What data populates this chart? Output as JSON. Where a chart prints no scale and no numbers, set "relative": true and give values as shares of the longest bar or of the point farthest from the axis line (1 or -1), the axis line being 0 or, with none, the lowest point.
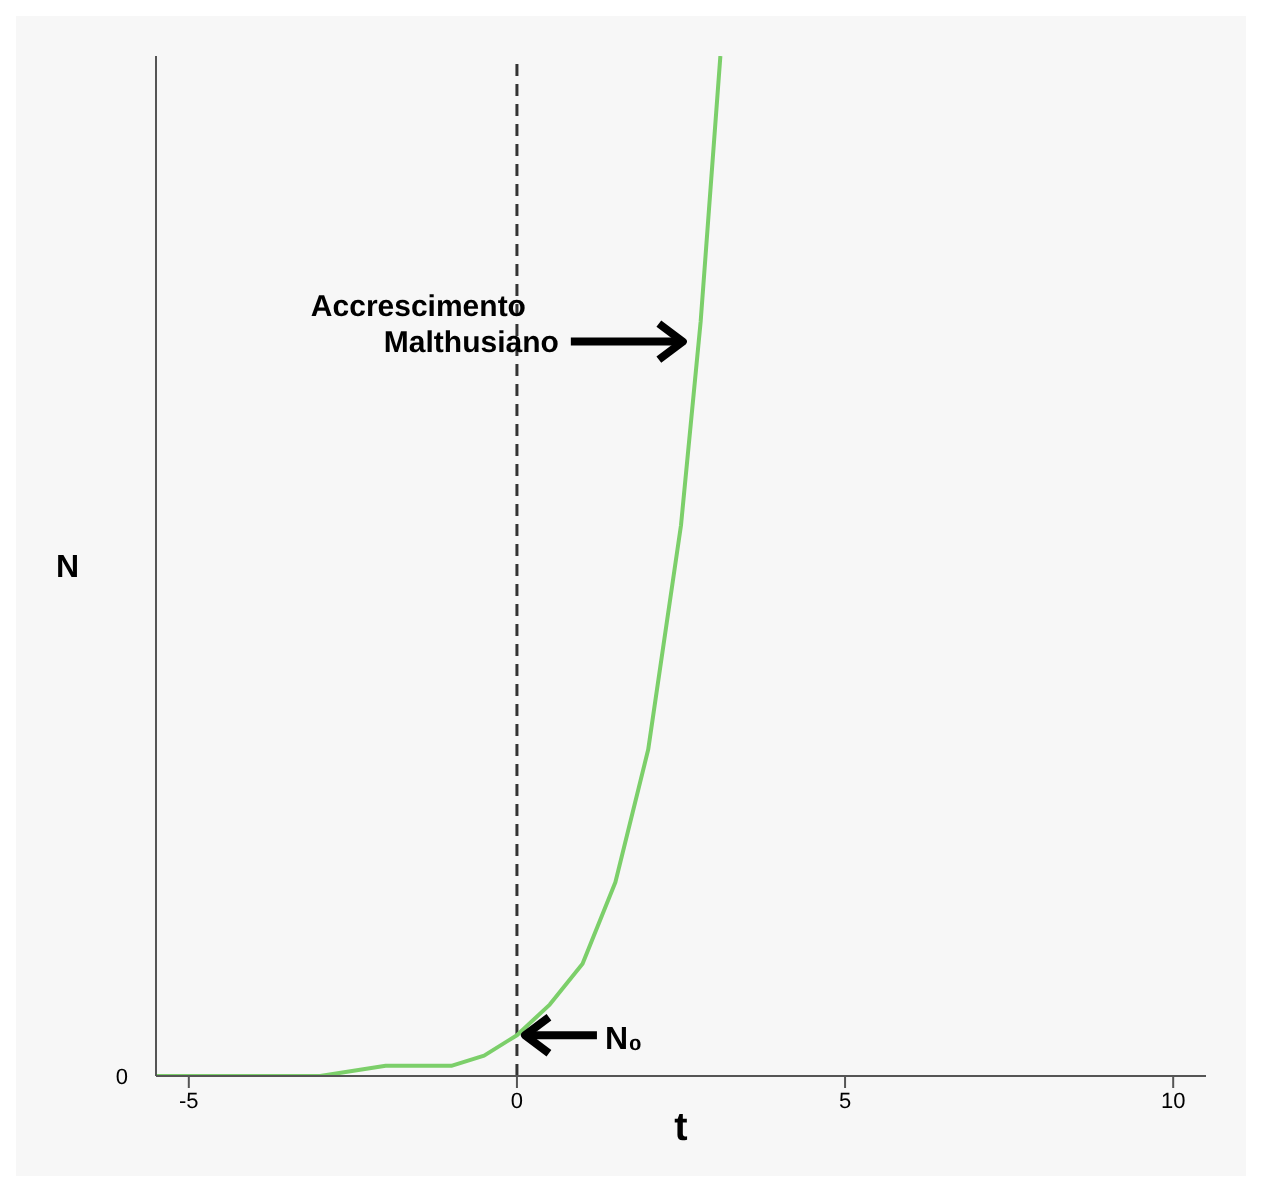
{
  "chart_data": {
    "type": "line",
    "relative": true,
    "xlabel": "t",
    "ylabel": "N",
    "x": [
      -5.5,
      -4,
      -3,
      -2,
      -1,
      -0.5,
      0,
      0.5,
      1,
      1.5,
      2,
      2.5,
      2.8,
      3.1
    ],
    "series": [
      {
        "color": "#7ccf6a",
        "values": [
          0,
          0,
          0,
          0.01,
          0.01,
          0.02,
          0.04,
          0.07,
          0.11,
          0.19,
          0.32,
          0.54,
          0.74,
          1
        ]
      }
    ],
    "xlim": [
      -5.5,
      10.5
    ],
    "xticks": [
      -5,
      0,
      5,
      10
    ],
    "ref_lines": [
      {
        "axis": "x",
        "value": 0,
        "line_style": "dashed",
        "color": "#333333"
      }
    ],
    "annotations": [
      {
        "text": "Accrescimento\nMalthusiano",
        "x": 2.65,
        "y": 0.72
      },
      {
        "text": "N₀",
        "x": 0,
        "y": 0.04
      },
      "0"
    ],
    "grid": false,
    "marker": "none",
    "line_style": "solid"
  }
}
